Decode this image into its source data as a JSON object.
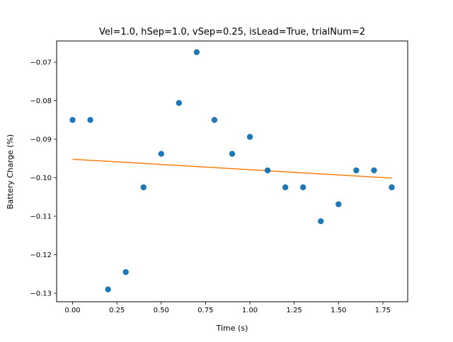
{
  "chart_data": {
    "type": "scatter",
    "title": "Vel=1.0, hSep=1.0, vSep=0.25, isLead=True, trialNum=2",
    "xlabel": "Time (s)",
    "ylabel": "Battery Charge (%)",
    "xlim": [
      -0.09,
      1.89
    ],
    "ylim": [
      -0.1322,
      -0.0645
    ],
    "grid": false,
    "x_ticks": [
      0.0,
      0.25,
      0.5,
      0.75,
      1.0,
      1.25,
      1.5,
      1.75
    ],
    "x_tick_labels": [
      "0.00",
      "0.25",
      "0.50",
      "0.75",
      "1.00",
      "1.25",
      "1.50",
      "1.75"
    ],
    "y_ticks": [
      -0.07,
      -0.08,
      -0.09,
      -0.1,
      -0.11,
      -0.12,
      -0.13
    ],
    "y_tick_labels": [
      "−0.07",
      "−0.08",
      "−0.09",
      "−0.10",
      "−0.11",
      "−0.12",
      "−0.13"
    ],
    "series": [
      {
        "type": "scatter",
        "color": "#1f77b4",
        "x": [
          0.0,
          0.1,
          0.2,
          0.3,
          0.4,
          0.5,
          0.6,
          0.7,
          0.8,
          0.9,
          1.0,
          1.1,
          1.2,
          1.3,
          1.4,
          1.5,
          1.6,
          1.7,
          1.8
        ],
        "y": [
          -0.085,
          -0.085,
          -0.129,
          -0.1245,
          -0.1025,
          -0.0938,
          -0.0806,
          -0.0674,
          -0.085,
          -0.0938,
          -0.0894,
          -0.0981,
          -0.1025,
          -0.1025,
          -0.1113,
          -0.1069,
          -0.0981,
          -0.0981,
          -0.1025
        ]
      },
      {
        "type": "line",
        "color": "#ff7f0e",
        "x": [
          0.0,
          1.8
        ],
        "y": [
          -0.0952,
          -0.1001
        ]
      }
    ]
  }
}
